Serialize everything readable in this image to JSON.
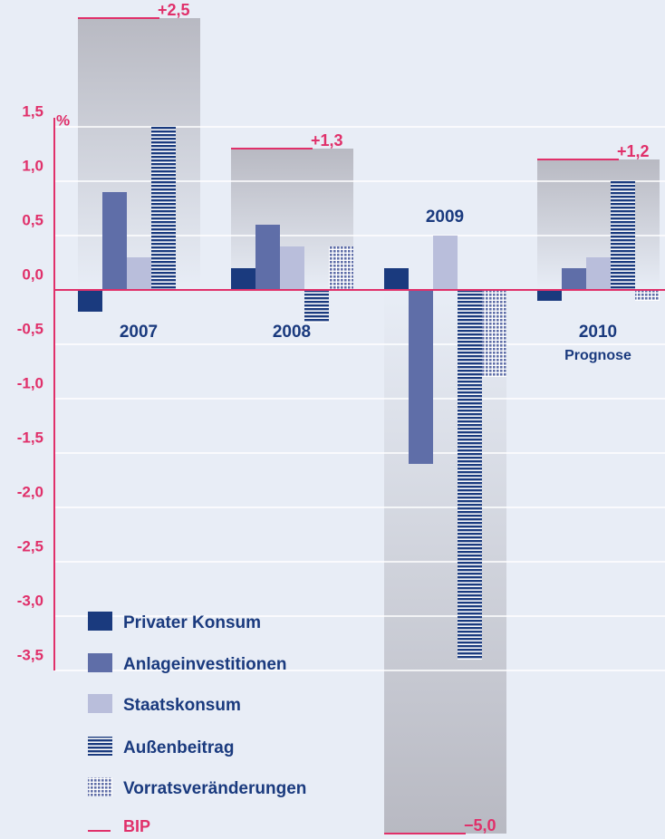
{
  "chart_data": {
    "type": "bar",
    "ylabel": "%",
    "annotation": "Prognose",
    "categories": [
      "2007",
      "2008",
      "2009",
      "2010"
    ],
    "series": [
      {
        "name": "Privater Konsum",
        "color": "#1a3a7e",
        "values": [
          -0.2,
          0.2,
          0.2,
          -0.1
        ]
      },
      {
        "name": "Anlageinvestitionen",
        "color": "#5f6ea8",
        "values": [
          0.9,
          0.6,
          -1.6,
          0.2
        ]
      },
      {
        "name": "Staatskonsum",
        "color": "#b9bedb",
        "values": [
          0.3,
          0.4,
          0.5,
          0.3
        ]
      },
      {
        "name": "Außenbeitrag",
        "color": "#1a3a7e",
        "pattern": "stripes",
        "values": [
          1.5,
          -0.3,
          -3.4,
          1.0
        ]
      },
      {
        "name": "Vorratsveränderungen",
        "color": "#5f6ea8",
        "pattern": "dots",
        "values": [
          null,
          0.4,
          -0.8,
          -0.1
        ]
      },
      {
        "name": "BIP",
        "color": "#e0306a",
        "style": "level",
        "values": [
          2.5,
          1.3,
          -5.0,
          1.2
        ],
        "value_labels": [
          "+2,5",
          "+1,3",
          "−5,0",
          "+1,2"
        ]
      }
    ],
    "ylim": [
      -3.5,
      1.5
    ],
    "yticks": [
      {
        "value": 1.5,
        "label": "1,5"
      },
      {
        "value": 1.0,
        "label": "1,0"
      },
      {
        "value": 0.5,
        "label": "0,5"
      },
      {
        "value": 0.0,
        "label": "0,0"
      },
      {
        "value": -0.5,
        "label": "-0,5"
      },
      {
        "value": -1.0,
        "label": "-1,0"
      },
      {
        "value": -1.5,
        "label": "-1,5"
      },
      {
        "value": -2.0,
        "label": "-2,0"
      },
      {
        "value": -2.5,
        "label": "-2,5"
      },
      {
        "value": -3.0,
        "label": "-3,0"
      },
      {
        "value": -3.5,
        "label": "-3,5"
      }
    ],
    "grid": true
  }
}
